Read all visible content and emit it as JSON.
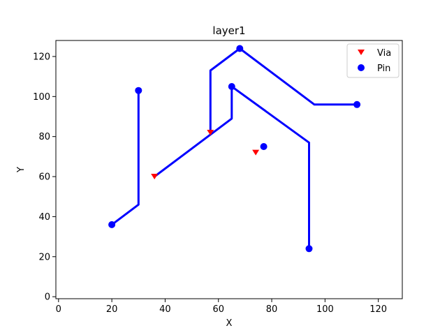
{
  "chart_data": {
    "type": "line",
    "title": "layer1",
    "xlabel": "X",
    "ylabel": "Y",
    "xlim": [
      -1,
      129
    ],
    "ylim": [
      -1,
      128
    ],
    "xticks": [
      0,
      20,
      40,
      60,
      80,
      100,
      120
    ],
    "yticks": [
      0,
      20,
      40,
      60,
      80,
      100,
      120
    ],
    "grid": false,
    "legend_position": "top-right",
    "wire_color": "#0000ff",
    "series": [
      {
        "name": "",
        "type": "line",
        "color": "#0000ff",
        "segments": [
          [
            [
              20,
              36
            ],
            [
              30,
              46
            ],
            [
              30,
              103
            ]
          ],
          [
            [
              36,
              60
            ],
            [
              65,
              89
            ],
            [
              65,
              105
            ],
            [
              94,
              77
            ],
            [
              94,
              24
            ]
          ],
          [
            [
              57,
              82
            ],
            [
              57,
              113
            ],
            [
              68,
              124
            ],
            [
              96,
              96
            ],
            [
              112,
              96
            ]
          ]
        ]
      },
      {
        "name": "Via",
        "type": "scatter",
        "marker": "triangle-down",
        "color": "#ff0000",
        "points": [
          [
            36,
            60
          ],
          [
            57,
            82
          ],
          [
            74,
            72
          ]
        ]
      },
      {
        "name": "Pin",
        "type": "scatter",
        "marker": "circle",
        "color": "#0000ff",
        "points": [
          [
            20,
            36
          ],
          [
            30,
            103
          ],
          [
            65,
            105
          ],
          [
            68,
            124
          ],
          [
            77,
            75
          ],
          [
            94,
            24
          ],
          [
            112,
            96
          ]
        ]
      }
    ]
  }
}
